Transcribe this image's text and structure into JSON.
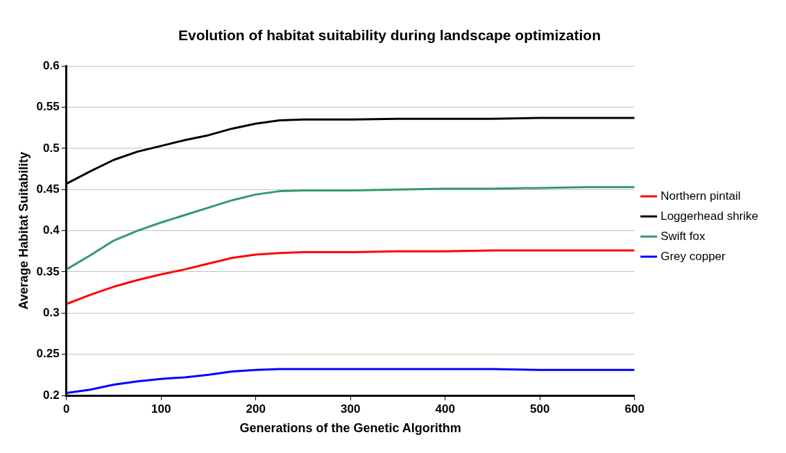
{
  "chart_data": {
    "type": "line",
    "title": "Evolution of habitat suitability during landscape optimization",
    "xlabel": "Generations of the Genetic Algorithm",
    "ylabel": "Average Habitat Suitability",
    "xlim": [
      0,
      600
    ],
    "xticks": [
      0,
      100,
      200,
      300,
      400,
      500,
      600
    ],
    "ylim": [
      0.2,
      0.6
    ],
    "yticks": [
      0.2,
      0.25,
      0.3,
      0.35,
      0.4,
      0.45,
      0.5,
      0.55,
      0.6
    ],
    "grid": "y",
    "legend": "right",
    "marker": "none",
    "line_style": "solid",
    "x": [
      0,
      25,
      50,
      75,
      100,
      125,
      150,
      175,
      200,
      225,
      250,
      300,
      350,
      400,
      450,
      500,
      550,
      600
    ],
    "series": [
      {
        "name": "Northern pintail",
        "color": "#ff0000",
        "values": [
          0.311,
          0.322,
          0.332,
          0.34,
          0.347,
          0.353,
          0.36,
          0.367,
          0.371,
          0.373,
          0.374,
          0.374,
          0.375,
          0.375,
          0.376,
          0.376,
          0.376,
          0.376
        ]
      },
      {
        "name": "Loggerhead shrike",
        "color": "#000000",
        "values": [
          0.457,
          0.472,
          0.486,
          0.496,
          0.503,
          0.51,
          0.516,
          0.524,
          0.53,
          0.534,
          0.535,
          0.535,
          0.536,
          0.536,
          0.536,
          0.537,
          0.537,
          0.537
        ]
      },
      {
        "name": "Swift fox",
        "color": "#339966",
        "values": [
          0.353,
          0.37,
          0.388,
          0.4,
          0.41,
          0.419,
          0.428,
          0.437,
          0.444,
          0.448,
          0.449,
          0.449,
          0.45,
          0.451,
          0.451,
          0.452,
          0.453,
          0.453
        ]
      },
      {
        "name": "Grey copper",
        "color": "#0000ff",
        "values": [
          0.203,
          0.207,
          0.213,
          0.217,
          0.22,
          0.222,
          0.225,
          0.229,
          0.231,
          0.232,
          0.232,
          0.232,
          0.232,
          0.232,
          0.232,
          0.231,
          0.231,
          0.231
        ]
      }
    ]
  }
}
